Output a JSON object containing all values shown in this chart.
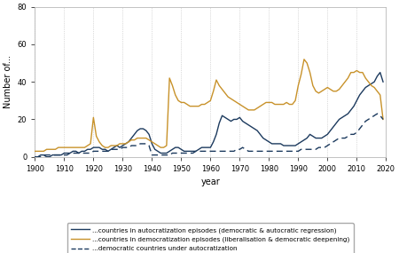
{
  "xlabel": "year",
  "ylabel": "Number of...",
  "ylim": [
    0,
    80
  ],
  "yticks": [
    0,
    20,
    40,
    60,
    80
  ],
  "xlim": [
    1900,
    2020
  ],
  "xticks": [
    1900,
    1910,
    1920,
    1930,
    1940,
    1950,
    1960,
    1970,
    1980,
    1990,
    2000,
    2010,
    2020
  ],
  "autocratization": {
    "years": [
      1900,
      1901,
      1902,
      1903,
      1904,
      1905,
      1906,
      1907,
      1908,
      1909,
      1910,
      1911,
      1912,
      1913,
      1914,
      1915,
      1916,
      1917,
      1918,
      1919,
      1920,
      1921,
      1922,
      1923,
      1924,
      1925,
      1926,
      1927,
      1928,
      1929,
      1930,
      1931,
      1932,
      1933,
      1934,
      1935,
      1936,
      1937,
      1938,
      1939,
      1940,
      1941,
      1942,
      1943,
      1944,
      1945,
      1946,
      1947,
      1948,
      1949,
      1950,
      1951,
      1952,
      1953,
      1954,
      1955,
      1956,
      1957,
      1958,
      1959,
      1960,
      1961,
      1962,
      1963,
      1964,
      1965,
      1966,
      1967,
      1968,
      1969,
      1970,
      1971,
      1972,
      1973,
      1974,
      1975,
      1976,
      1977,
      1978,
      1979,
      1980,
      1981,
      1982,
      1983,
      1984,
      1985,
      1986,
      1987,
      1988,
      1989,
      1990,
      1991,
      1992,
      1993,
      1994,
      1995,
      1996,
      1997,
      1998,
      1999,
      2000,
      2001,
      2002,
      2003,
      2004,
      2005,
      2006,
      2007,
      2008,
      2009,
      2010,
      2011,
      2012,
      2013,
      2014,
      2015,
      2016,
      2017,
      2018,
      2019
    ],
    "values": [
      0,
      0,
      1,
      1,
      0,
      0,
      1,
      1,
      1,
      1,
      2,
      2,
      2,
      3,
      3,
      2,
      3,
      3,
      4,
      4,
      5,
      5,
      5,
      4,
      4,
      3,
      4,
      5,
      6,
      5,
      6,
      7,
      8,
      10,
      12,
      14,
      15,
      15,
      14,
      12,
      7,
      4,
      3,
      2,
      2,
      2,
      3,
      4,
      5,
      5,
      4,
      3,
      3,
      3,
      3,
      3,
      4,
      5,
      5,
      5,
      5,
      8,
      12,
      18,
      22,
      21,
      20,
      19,
      20,
      20,
      21,
      19,
      18,
      17,
      16,
      15,
      14,
      12,
      10,
      9,
      8,
      7,
      7,
      7,
      7,
      6,
      6,
      6,
      6,
      6,
      7,
      8,
      9,
      10,
      12,
      11,
      10,
      10,
      10,
      11,
      12,
      14,
      16,
      18,
      20,
      21,
      22,
      23,
      25,
      27,
      30,
      33,
      35,
      37,
      38,
      39,
      40,
      43,
      45,
      40
    ]
  },
  "democratization": {
    "years": [
      1900,
      1901,
      1902,
      1903,
      1904,
      1905,
      1906,
      1907,
      1908,
      1909,
      1910,
      1911,
      1912,
      1913,
      1914,
      1915,
      1916,
      1917,
      1918,
      1919,
      1920,
      1921,
      1922,
      1923,
      1924,
      1925,
      1926,
      1927,
      1928,
      1929,
      1930,
      1931,
      1932,
      1933,
      1934,
      1935,
      1936,
      1937,
      1938,
      1939,
      1940,
      1941,
      1942,
      1943,
      1944,
      1945,
      1946,
      1947,
      1948,
      1949,
      1950,
      1951,
      1952,
      1953,
      1954,
      1955,
      1956,
      1957,
      1958,
      1959,
      1960,
      1961,
      1962,
      1963,
      1964,
      1965,
      1966,
      1967,
      1968,
      1969,
      1970,
      1971,
      1972,
      1973,
      1974,
      1975,
      1976,
      1977,
      1978,
      1979,
      1980,
      1981,
      1982,
      1983,
      1984,
      1985,
      1986,
      1987,
      1988,
      1989,
      1990,
      1991,
      1992,
      1993,
      1994,
      1995,
      1996,
      1997,
      1998,
      1999,
      2000,
      2001,
      2002,
      2003,
      2004,
      2005,
      2006,
      2007,
      2008,
      2009,
      2010,
      2011,
      2012,
      2013,
      2014,
      2015,
      2016,
      2017,
      2018,
      2019
    ],
    "values": [
      3,
      3,
      3,
      3,
      4,
      4,
      4,
      4,
      5,
      5,
      5,
      5,
      5,
      5,
      5,
      5,
      5,
      5,
      6,
      7,
      21,
      11,
      8,
      6,
      5,
      5,
      6,
      6,
      6,
      7,
      7,
      7,
      8,
      9,
      9,
      10,
      10,
      10,
      10,
      9,
      8,
      7,
      6,
      5,
      5,
      6,
      42,
      38,
      33,
      30,
      29,
      29,
      28,
      27,
      27,
      27,
      27,
      28,
      28,
      29,
      30,
      35,
      41,
      38,
      36,
      34,
      32,
      31,
      30,
      29,
      28,
      27,
      26,
      25,
      25,
      25,
      26,
      27,
      28,
      29,
      29,
      29,
      28,
      28,
      28,
      28,
      29,
      28,
      28,
      30,
      38,
      44,
      52,
      50,
      45,
      38,
      35,
      34,
      35,
      36,
      37,
      36,
      35,
      35,
      36,
      38,
      40,
      42,
      45,
      45,
      46,
      45,
      45,
      42,
      40,
      38,
      37,
      35,
      33,
      20
    ]
  },
  "dem_under_autocrat": {
    "years": [
      1900,
      1901,
      1902,
      1903,
      1904,
      1905,
      1906,
      1907,
      1908,
      1909,
      1910,
      1911,
      1912,
      1913,
      1914,
      1915,
      1916,
      1917,
      1918,
      1919,
      1920,
      1921,
      1922,
      1923,
      1924,
      1925,
      1926,
      1927,
      1928,
      1929,
      1930,
      1931,
      1932,
      1933,
      1934,
      1935,
      1936,
      1937,
      1938,
      1939,
      1940,
      1941,
      1942,
      1943,
      1944,
      1945,
      1946,
      1947,
      1948,
      1949,
      1950,
      1951,
      1952,
      1953,
      1954,
      1955,
      1956,
      1957,
      1958,
      1959,
      1960,
      1961,
      1962,
      1963,
      1964,
      1965,
      1966,
      1967,
      1968,
      1969,
      1970,
      1971,
      1972,
      1973,
      1974,
      1975,
      1976,
      1977,
      1978,
      1979,
      1980,
      1981,
      1982,
      1983,
      1984,
      1985,
      1986,
      1987,
      1988,
      1989,
      1990,
      1991,
      1992,
      1993,
      1994,
      1995,
      1996,
      1997,
      1998,
      1999,
      2000,
      2001,
      2002,
      2003,
      2004,
      2005,
      2006,
      2007,
      2008,
      2009,
      2010,
      2011,
      2012,
      2013,
      2014,
      2015,
      2016,
      2017,
      2018,
      2019
    ],
    "values": [
      0,
      0,
      0,
      1,
      1,
      1,
      1,
      1,
      1,
      1,
      1,
      1,
      2,
      2,
      2,
      2,
      2,
      2,
      2,
      2,
      3,
      3,
      3,
      3,
      3,
      3,
      4,
      4,
      4,
      4,
      5,
      5,
      5,
      6,
      6,
      6,
      7,
      7,
      7,
      6,
      1,
      1,
      1,
      1,
      1,
      1,
      1,
      2,
      2,
      2,
      2,
      2,
      2,
      2,
      2,
      3,
      3,
      3,
      3,
      3,
      3,
      3,
      3,
      3,
      3,
      3,
      3,
      3,
      3,
      4,
      4,
      5,
      4,
      3,
      3,
      3,
      3,
      3,
      3,
      3,
      3,
      3,
      3,
      3,
      3,
      3,
      3,
      3,
      3,
      3,
      3,
      4,
      4,
      4,
      4,
      4,
      4,
      5,
      5,
      5,
      6,
      7,
      8,
      9,
      10,
      10,
      10,
      11,
      12,
      12,
      13,
      15,
      17,
      19,
      20,
      21,
      22,
      23,
      22,
      20
    ]
  },
  "line_colors": {
    "autocratization": "#1c3a5e",
    "democratization": "#c8922a",
    "dem_under_autocrat": "#1c3a5e"
  },
  "legend_labels": [
    "...countries in autocratization episodes (democratic & autocratic regression)",
    "...countries in democratization episodes (liberalisation & democratic deepening)",
    "...democratic countries under autocratization"
  ],
  "background_color": "#ffffff",
  "grid_color": "#bbbbbb"
}
